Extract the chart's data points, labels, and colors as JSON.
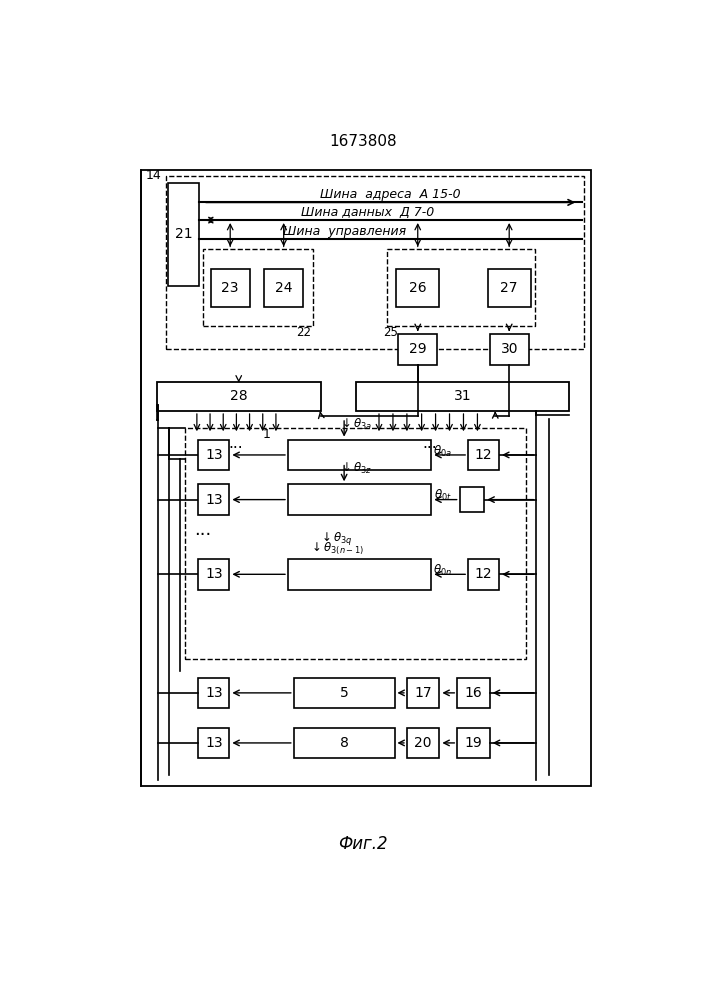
{
  "title": "1673808",
  "caption": "Фиг.2",
  "bus_addr": "Шина  адреса  А 15-0",
  "bus_data": "Шина данных  Д 7-0",
  "bus_ctrl": "Шина  управления"
}
